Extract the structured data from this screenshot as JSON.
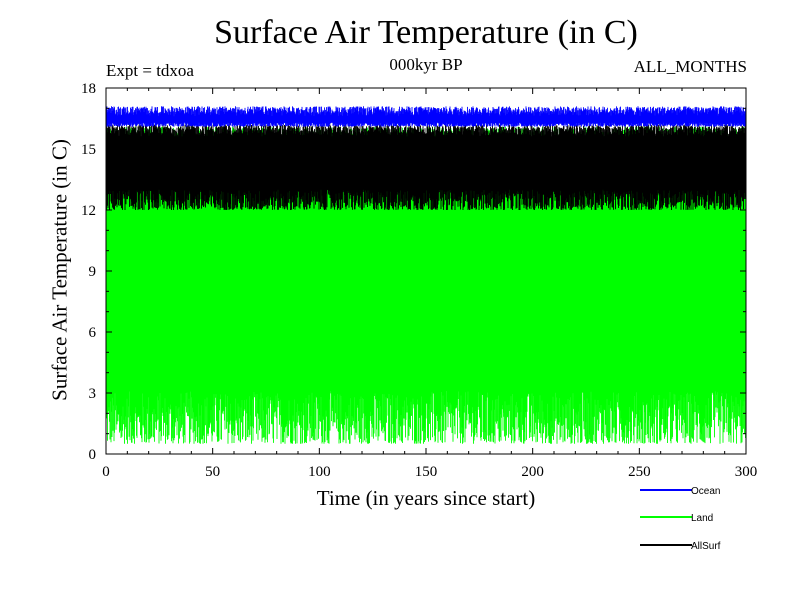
{
  "chart_data": {
    "type": "line",
    "title": "Surface Air Temperature (in C)",
    "subtitle": "000kyr BP",
    "annotation_left": "Expt = tdxoa",
    "annotation_right": "ALL_MONTHS",
    "xlabel": "Time (in years since start)",
    "ylabel": "Surface Air Temperature (in C)",
    "xlim": [
      0,
      300
    ],
    "ylim": [
      0,
      18
    ],
    "xticks": [
      0,
      50,
      100,
      150,
      200,
      250,
      300
    ],
    "yticks": [
      0,
      3,
      6,
      9,
      12,
      15,
      18
    ],
    "grid": false,
    "legend_position": "below-right",
    "sampling": "monthly",
    "series": [
      {
        "name": "Ocean",
        "color": "#0000ff",
        "min_range": [
          16.1,
          16.3
        ],
        "max_range": [
          16.6,
          17.1
        ]
      },
      {
        "name": "Land",
        "color": "#00ff00",
        "min_range": [
          0.5,
          3.1
        ],
        "max_range": [
          15.0,
          16.1
        ]
      },
      {
        "name": "AllSurf",
        "color": "#000000",
        "min_range": [
          12.0,
          13.0
        ],
        "max_range": [
          15.6,
          16.2
        ]
      }
    ]
  }
}
